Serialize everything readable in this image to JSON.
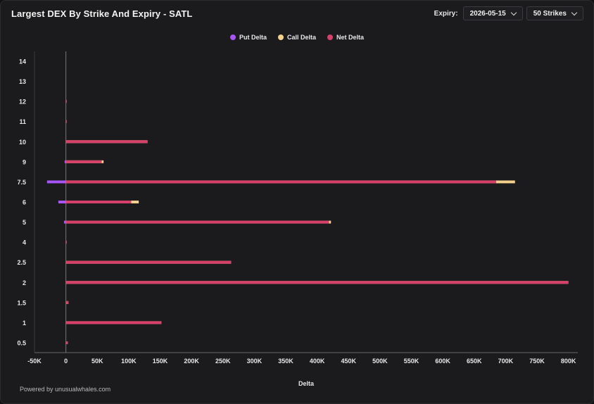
{
  "header": {
    "title": "Largest DEX By Strike And Expiry - SATL",
    "expiry_label": "Expiry:",
    "expiry_value": "2026-05-15",
    "strikes_value": "50 Strikes"
  },
  "footer": {
    "text": "Powered by unusualwhales.com"
  },
  "colors": {
    "put": "#a855f7",
    "call": "#f3d08b",
    "net": "#d6406b",
    "axis": "#8a8a8a",
    "text": "#e8e8e8"
  },
  "chart_data": {
    "type": "bar",
    "orientation": "horizontal",
    "title": "Largest DEX By Strike And Expiry - SATL",
    "xlabel": "Delta",
    "ylabel": "",
    "xlim": [
      -50000,
      815000
    ],
    "x_ticks": [
      -50000,
      0,
      50000,
      100000,
      150000,
      200000,
      250000,
      300000,
      350000,
      400000,
      450000,
      500000,
      550000,
      600000,
      650000,
      700000,
      750000,
      800000
    ],
    "x_tick_labels": [
      "-50K",
      "0",
      "50K",
      "100K",
      "150K",
      "200K",
      "250K",
      "300K",
      "350K",
      "400K",
      "450K",
      "500K",
      "550K",
      "600K",
      "650K",
      "700K",
      "750K",
      "800K"
    ],
    "grid": false,
    "legend_position": "top-center",
    "categories": [
      "14",
      "13",
      "12",
      "11",
      "10",
      "9",
      "7.5",
      "6",
      "5",
      "4",
      "2.5",
      "2",
      "1.5",
      "1",
      "0.5"
    ],
    "series": [
      {
        "name": "Put Delta",
        "values": [
          0,
          0,
          0,
          0,
          0,
          -2000,
          -30000,
          -12000,
          -3000,
          0,
          0,
          0,
          0,
          0,
          0
        ]
      },
      {
        "name": "Call Delta",
        "values": [
          0,
          0,
          500,
          500,
          130000,
          60000,
          715000,
          116000,
          422000,
          300,
          263000,
          800000,
          4000,
          152000,
          3000
        ]
      },
      {
        "name": "Net Delta",
        "values": [
          0,
          0,
          500,
          500,
          130000,
          57000,
          685000,
          104000,
          419000,
          300,
          263000,
          800000,
          4000,
          152000,
          3000
        ]
      }
    ]
  }
}
